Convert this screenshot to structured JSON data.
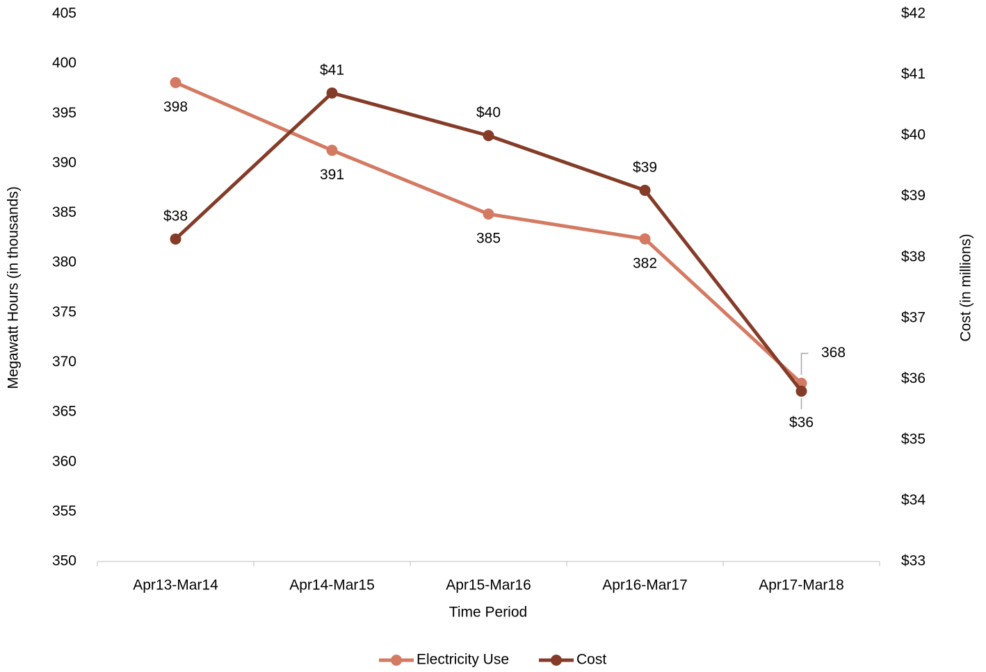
{
  "chart_data": {
    "type": "line",
    "x_label": "Time Period",
    "y_label": "Megawatt Hours (in thousands)",
    "y2_label": "Cost (in millions)",
    "categories": [
      "Apr13-Mar14",
      "Apr14-Mar15",
      "Apr15-Mar16",
      "Apr16-Mar17",
      "Apr17-Mar18"
    ],
    "series": [
      {
        "name": "Electricity Use",
        "color": "#d47a62",
        "values": [
          398.1,
          391.3,
          384.9,
          382.4,
          367.9
        ],
        "value_labels": [
          "398",
          "391",
          "385",
          "382",
          "368"
        ]
      },
      {
        "name": "Cost",
        "color": "#843c28",
        "axis": "y2",
        "values": [
          38.3,
          40.7,
          40.0,
          39.1,
          35.8
        ],
        "value_labels": [
          "$38",
          "$41",
          "$40",
          "$39",
          "$36"
        ]
      }
    ],
    "ylim": [
      350,
      405
    ],
    "yticks": [
      350,
      355,
      360,
      365,
      370,
      375,
      380,
      385,
      390,
      395,
      400,
      405
    ],
    "y2lim": [
      33,
      42
    ],
    "y2ticks": [
      {
        "value": 33,
        "label": "$33"
      },
      {
        "value": 34,
        "label": "$34"
      },
      {
        "value": 35,
        "label": "$35"
      },
      {
        "value": 36,
        "label": "$36"
      },
      {
        "value": 37,
        "label": "$37"
      },
      {
        "value": 38,
        "label": "$38"
      },
      {
        "value": 39,
        "label": "$39"
      },
      {
        "value": 40,
        "label": "$40"
      },
      {
        "value": 41,
        "label": "$41"
      },
      {
        "value": 42,
        "label": "$42"
      }
    ],
    "legend": "bottom"
  }
}
